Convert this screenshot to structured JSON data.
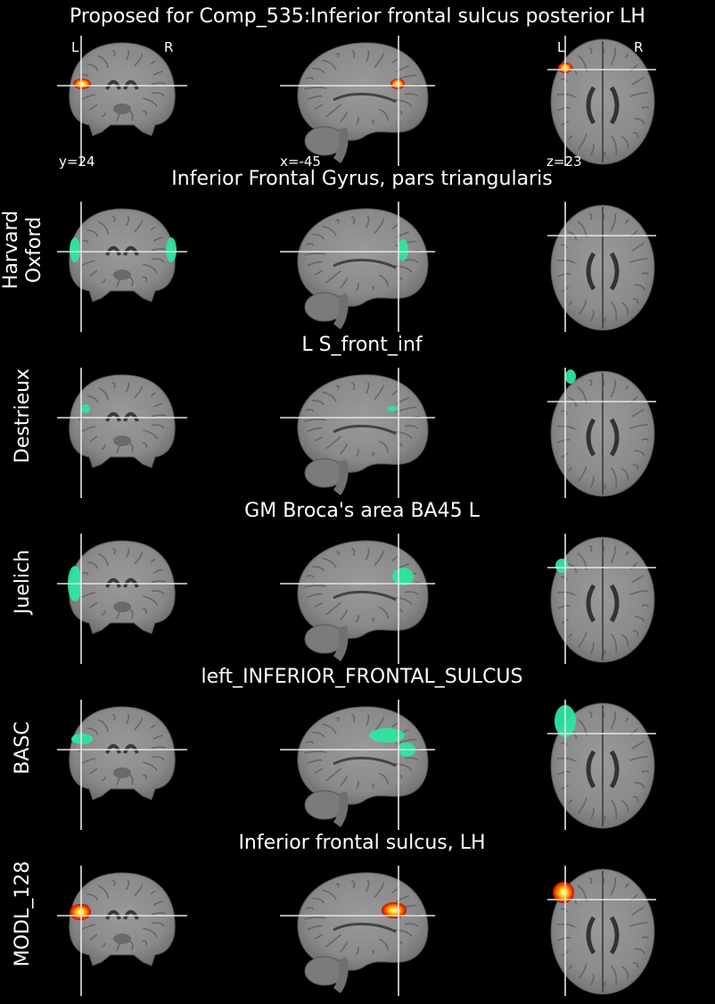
{
  "title": "Proposed for Comp_535:Inferior frontal sulcus posterior LH",
  "orientation": {
    "left": "L",
    "right": "R"
  },
  "coords": {
    "coronal": "y=24",
    "sagittal": "x=-45",
    "axial": "z=23"
  },
  "rows": [
    {
      "atlas": "",
      "region": ""
    },
    {
      "atlas": "Harvard\nOxford",
      "region": "Inferior Frontal Gyrus, pars triangularis"
    },
    {
      "atlas": "Destrieux",
      "region": "L S_front_inf"
    },
    {
      "atlas": "Juelich",
      "region": "GM Broca's area BA45 L"
    },
    {
      "atlas": "BASC",
      "region": "left_INFERIOR_FRONTAL_SULCUS"
    },
    {
      "atlas": "MODL_128",
      "region": "Inferior frontal sulcus, LH"
    }
  ],
  "colors": {
    "background": "#000000",
    "overlay_atlas": "#2ee6a0",
    "overlay_component": "hot-colormap",
    "crosshair": "#e6e6e6"
  }
}
